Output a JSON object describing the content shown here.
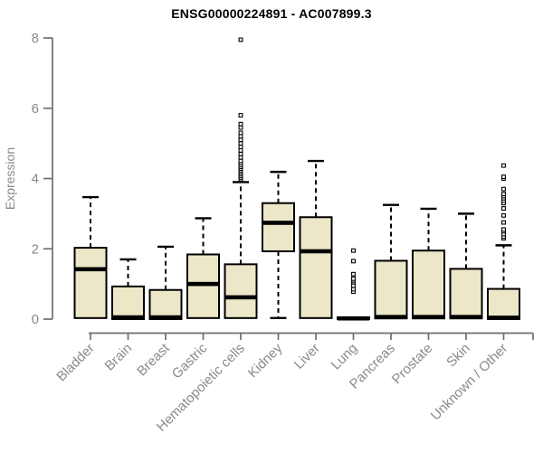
{
  "title": "ENSG00000224891 - AC007899.3",
  "chart_data": {
    "type": "boxplot",
    "title": "ENSG00000224891 - AC007899.3",
    "xlabel": "",
    "ylabel": "Expression",
    "ylim": [
      0,
      8
    ],
    "yticks": [
      0,
      2,
      4,
      6,
      8
    ],
    "grid": false,
    "legend_position": "none",
    "categories": [
      "Bladder",
      "Brain",
      "Breast",
      "Gastric",
      "Hematopoietic cells",
      "Kidney",
      "Liver",
      "Lung",
      "Pancreas",
      "Prostate",
      "Skin",
      "Unknown / Other"
    ],
    "boxes": [
      {
        "category": "Bladder",
        "min": 0,
        "q1": 0.03,
        "median": 1.42,
        "q3": 2.03,
        "max": 3.47,
        "outliers": []
      },
      {
        "category": "Brain",
        "min": 0,
        "q1": 0,
        "median": 0.05,
        "q3": 0.93,
        "max": 1.7,
        "outliers": []
      },
      {
        "category": "Breast",
        "min": 0,
        "q1": 0,
        "median": 0.05,
        "q3": 0.83,
        "max": 2.06,
        "outliers": []
      },
      {
        "category": "Gastric",
        "min": 0,
        "q1": 0.03,
        "median": 1.0,
        "q3": 1.84,
        "max": 2.87,
        "outliers": []
      },
      {
        "category": "Hematopoietic cells",
        "min": 0,
        "q1": 0.03,
        "median": 0.62,
        "q3": 1.56,
        "max": 3.9,
        "outliers": [
          3.98,
          4.03,
          4.08,
          4.13,
          4.18,
          4.23,
          4.28,
          4.33,
          4.38,
          4.44,
          4.5,
          4.6,
          4.7,
          4.8,
          4.9,
          5.0,
          5.1,
          5.2,
          5.3,
          5.45,
          5.55,
          5.8,
          7.95
        ]
      },
      {
        "category": "Kidney",
        "min": 0.03,
        "q1": 1.93,
        "median": 2.74,
        "q3": 3.3,
        "max": 4.19,
        "outliers": []
      },
      {
        "category": "Liver",
        "min": 0,
        "q1": 0.03,
        "median": 1.93,
        "q3": 2.9,
        "max": 4.5,
        "outliers": []
      },
      {
        "category": "Lung",
        "min": 0,
        "q1": 0,
        "median": 0.02,
        "q3": 0.05,
        "max": 0.05,
        "outliers": [
          0.78,
          0.85,
          0.95,
          1.05,
          1.1,
          1.15,
          1.28,
          1.65,
          1.95
        ]
      },
      {
        "category": "Pancreas",
        "min": 0,
        "q1": 0.02,
        "median": 0.06,
        "q3": 1.66,
        "max": 3.25,
        "outliers": []
      },
      {
        "category": "Prostate",
        "min": 0,
        "q1": 0.02,
        "median": 0.06,
        "q3": 1.95,
        "max": 3.14,
        "outliers": []
      },
      {
        "category": "Skin",
        "min": 0,
        "q1": 0.02,
        "median": 0.06,
        "q3": 1.43,
        "max": 3.0,
        "outliers": []
      },
      {
        "category": "Unknown / Other",
        "min": 0,
        "q1": 0,
        "median": 0.04,
        "q3": 0.86,
        "max": 2.1,
        "outliers": [
          2.3,
          2.35,
          2.42,
          2.5,
          2.55,
          2.75,
          2.95,
          3.15,
          3.3,
          3.37,
          3.44,
          3.5,
          3.56,
          3.7,
          4.0,
          4.05,
          4.37
        ]
      }
    ],
    "colors": {
      "box_fill": "#ece7c8",
      "box_border": "#000000",
      "median": "#000000",
      "whisker": "#000000",
      "outlier_fill": "#ffffff",
      "axis_line": "#6e6e6e",
      "axis_text": "#8a8a8a",
      "title": "#000000",
      "background": "#ffffff"
    }
  }
}
